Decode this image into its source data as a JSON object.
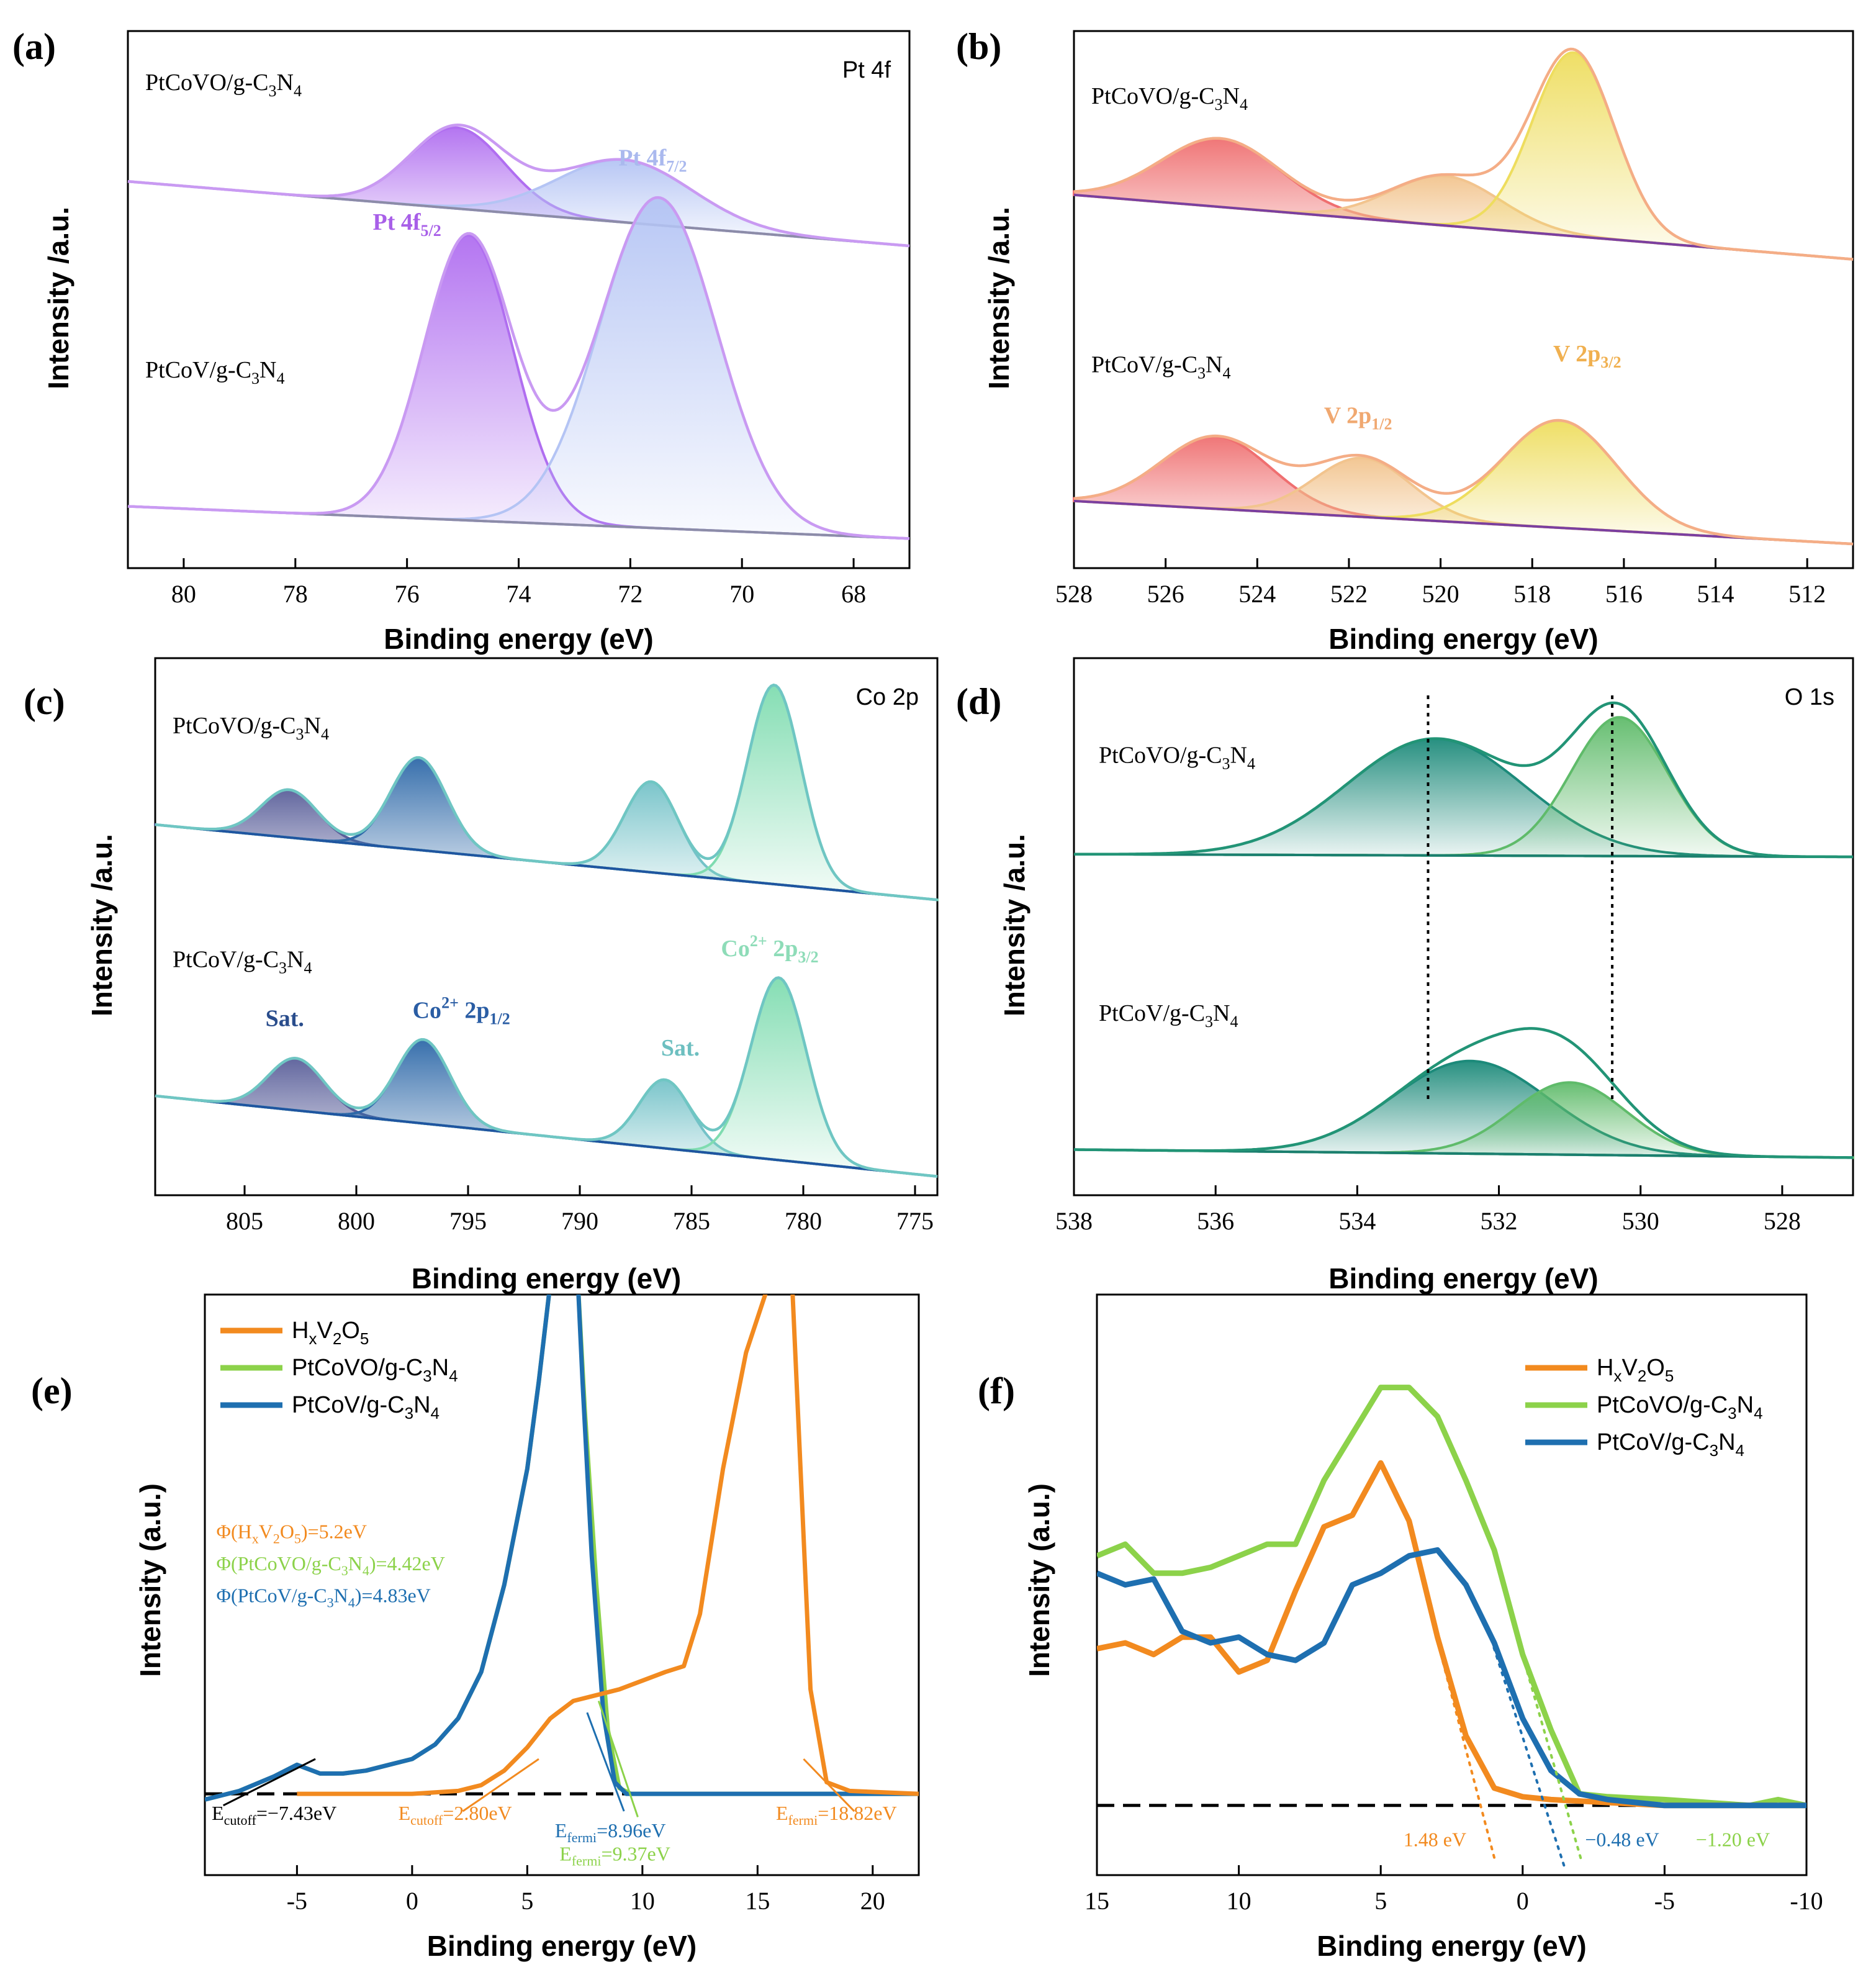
{
  "chart_data": [
    {
      "id": "a",
      "type": "line",
      "panel_label": "(a)",
      "xlabel": "Binding energy (eV)",
      "ylabel": "Intensity /a.u.",
      "xlim": [
        81,
        67
      ],
      "xticks": [
        80,
        78,
        76,
        74,
        72,
        70,
        68
      ],
      "corner_label": "Pt 4f",
      "colors": {
        "p1": "#b06ef0",
        "p2": "#b4c4f4",
        "env": "#c99af2",
        "bg": "#8c8ca8"
      },
      "traces": [
        {
          "name": "PtCoVO/g-C3N4",
          "name_display": "PtCoVO/g-C₃N₄",
          "baseline_start": 0.72,
          "baseline_end": 0.6,
          "peaks": [
            {
              "center": 75.1,
              "height": 0.82,
              "width": 0.85
            },
            {
              "center": 72.1,
              "height": 0.76,
              "width": 1.2
            }
          ]
        },
        {
          "name": "PtCoV/g-C3N4",
          "name_display": "PtCoV/g-C₃N₄",
          "baseline_start": 0.115,
          "baseline_end": 0.055,
          "peaks": [
            {
              "center": 74.9,
              "height": 0.62,
              "width": 0.8
            },
            {
              "center": 71.5,
              "height": 0.69,
              "width": 1.05
            }
          ]
        }
      ],
      "peak_labels": [
        {
          "text": "Pt 4f",
          "sub": "5/2",
          "x": 76.0,
          "y": 0.63,
          "color": "#a85fe8"
        },
        {
          "text": "Pt 4f",
          "sub": "7/2",
          "x": 71.6,
          "y": 0.75,
          "color": "#aab9ee"
        }
      ]
    },
    {
      "id": "b",
      "type": "line",
      "panel_label": "(b)",
      "xlabel": "Binding energy (eV)",
      "ylabel": "Intensity /a.u.",
      "xlim": [
        528,
        511
      ],
      "xticks": [
        528,
        526,
        524,
        522,
        520,
        518,
        516,
        514,
        512
      ],
      "corner_label": "",
      "colors": {
        "p1": "#ef6f70",
        "p2": "#f2c48e",
        "p3": "#eedd5e",
        "env": "#f4ad86",
        "bg": "#7b3fa0"
      },
      "traces": [
        {
          "name": "PtCoVO/g-C3N4",
          "name_display": "PtCoVO/g-C₃N₄",
          "baseline_start": 0.695,
          "baseline_end": 0.575,
          "peaks": [
            {
              "center": 524.8,
              "height": 0.8,
              "width": 1.3
            },
            {
              "center": 519.9,
              "height": 0.73,
              "width": 1.2
            },
            {
              "center": 517.1,
              "height": 0.96,
              "width": 0.9
            }
          ]
        },
        {
          "name": "PtCoV/g-C3N4",
          "name_display": "PtCoV/g-C₃N₄",
          "baseline_start": 0.125,
          "baseline_end": 0.045,
          "peaks": [
            {
              "center": 524.9,
              "height": 0.245,
              "width": 1.2
            },
            {
              "center": 521.7,
              "height": 0.205,
              "width": 1.05
            },
            {
              "center": 517.4,
              "height": 0.275,
              "width": 1.25
            }
          ]
        }
      ],
      "peak_labels": [
        {
          "text": "V 2p",
          "sub": "1/2",
          "x": 521.8,
          "y": 0.27,
          "color": "#f0a870"
        },
        {
          "text": "V 2p",
          "sub": "3/2",
          "x": 516.8,
          "y": 0.385,
          "color": "#f0b050"
        }
      ]
    },
    {
      "id": "c",
      "type": "line",
      "panel_label": "(c)",
      "xlabel": "Binding energy (eV)",
      "ylabel": "Intensity /a.u.",
      "xlim": [
        809,
        774
      ],
      "xticks": [
        805,
        800,
        795,
        790,
        785,
        780,
        775
      ],
      "corner_label": "Co 2p",
      "colors": {
        "p1": "#5a5f9a",
        "p2": "#2d68a8",
        "p3": "#74c2c8",
        "p4": "#7fdcb0",
        "env": "#6fc6c3",
        "bg": "#1f55a0"
      },
      "traces": [
        {
          "name": "PtCoVO/g-C3N4",
          "name_display": "PtCoVO/g-C₃N₄",
          "baseline_start": 0.69,
          "baseline_end": 0.55,
          "peaks": [
            {
              "center": 803.0,
              "height": 0.755,
              "width": 1.25
            },
            {
              "center": 797.2,
              "height": 0.815,
              "width": 1.25
            },
            {
              "center": 786.8,
              "height": 0.77,
              "width": 1.2
            },
            {
              "center": 781.3,
              "height": 0.95,
              "width": 1.2
            }
          ]
        },
        {
          "name": "PtCoV/g-C3N4",
          "name_display": "PtCoV/g-C₃N₄",
          "baseline_start": 0.185,
          "baseline_end": 0.035,
          "peaks": [
            {
              "center": 802.7,
              "height": 0.255,
              "width": 1.25
            },
            {
              "center": 797.0,
              "height": 0.29,
              "width": 1.2
            },
            {
              "center": 786.2,
              "height": 0.215,
              "width": 1.15
            },
            {
              "center": 781.1,
              "height": 0.405,
              "width": 1.25
            }
          ]
        }
      ],
      "peak_labels": [
        {
          "text": "Sat.",
          "sub": "",
          "x": 803.2,
          "y": 0.315,
          "color": "#2a4d8c"
        },
        {
          "text": "Co",
          "sup": "2+",
          "mid": " 2p",
          "sub": "1/2",
          "x": 795.3,
          "y": 0.33,
          "color": "#2a5da4"
        },
        {
          "text": "Sat.",
          "sub": "",
          "x": 785.5,
          "y": 0.26,
          "color": "#6dbfc0"
        },
        {
          "text": "Co",
          "sup": "2+",
          "mid": " 2p",
          "sub": "3/2",
          "x": 781.5,
          "y": 0.445,
          "color": "#8edcb8"
        }
      ]
    },
    {
      "id": "d",
      "type": "line",
      "panel_label": "(d)",
      "xlabel": "Binding energy (eV)",
      "ylabel": "Intensity /a.u.",
      "xlim": [
        538,
        527
      ],
      "xticks": [
        538,
        536,
        534,
        532,
        530,
        528
      ],
      "corner_label": "O 1s",
      "colors": {
        "p1": "#1c8a7a",
        "p2": "#5fbb6a",
        "env": "#229476",
        "bg": "#1b7f6f"
      },
      "dashed_x": [
        533.0,
        530.4
      ],
      "traces": [
        {
          "name": "PtCoVO/g-C3N4",
          "name_display": "PtCoVO/g-C₃N₄",
          "baseline_start": 0.635,
          "baseline_end": 0.63,
          "peaks": [
            {
              "center": 532.9,
              "height": 0.85,
              "width": 1.25
            },
            {
              "center": 530.3,
              "height": 0.89,
              "width": 0.68
            }
          ]
        },
        {
          "name": "PtCoV/g-C3N4",
          "name_display": "PtCoV/g-C₃N₄",
          "baseline_start": 0.085,
          "baseline_end": 0.07,
          "peaks": [
            {
              "center": 532.4,
              "height": 0.25,
              "width": 1.1
            },
            {
              "center": 531.0,
              "height": 0.21,
              "width": 0.8
            }
          ]
        }
      ]
    },
    {
      "id": "e",
      "type": "line",
      "panel_label": "(e)",
      "xlabel": "Binding energy (eV)",
      "ylabel": "Intensity (a.u.)",
      "xlim": [
        -9,
        22
      ],
      "xticks": [
        -5,
        0,
        5,
        10,
        15,
        20
      ],
      "ylim": [
        0,
        1
      ],
      "legend": [
        "HxV2O5",
        "PtCoVO/g-C3N4",
        "PtCoV/g-C3N4"
      ],
      "legend_display": [
        {
          "main": "H",
          "sub1": "x",
          "mid": "V",
          "sub2": "2",
          "end": "O",
          "sub3": "5"
        },
        {
          "main": "PtCoVO/g-C",
          "sub1": "3",
          "mid": "N",
          "sub2": "4"
        },
        {
          "main": "PtCoV/g-C",
          "sub1": "3",
          "mid": "N",
          "sub2": "4"
        }
      ],
      "colors": [
        "#f28a1f",
        "#8cd24a",
        "#1e6fb0"
      ],
      "baseline_y": 0.14,
      "series": [
        {
          "name": "HxV2O5",
          "x": [
            -5,
            0,
            2,
            3,
            4,
            5,
            6,
            7,
            8,
            9,
            10,
            11,
            11.8,
            12.5,
            13.5,
            14.5,
            15.5,
            16.5,
            17.3,
            18,
            19,
            22
          ],
          "y": [
            0.14,
            0.14,
            0.145,
            0.155,
            0.18,
            0.22,
            0.27,
            0.3,
            0.31,
            0.32,
            0.335,
            0.35,
            0.36,
            0.45,
            0.7,
            0.9,
            1.02,
            1.02,
            0.32,
            0.16,
            0.145,
            0.14
          ]
        },
        {
          "name": "PtCoVO/g-C3N4",
          "x": [
            -9,
            -7.5,
            -6,
            -5,
            -4,
            -3,
            -2,
            -1,
            0,
            1,
            2,
            3,
            4,
            5,
            5.5,
            6,
            6.5,
            7,
            7.2,
            7.5,
            8,
            8.5,
            9,
            9.5,
            10,
            22
          ],
          "y": [
            0.13,
            0.145,
            0.17,
            0.19,
            0.175,
            0.175,
            0.18,
            0.19,
            0.2,
            0.225,
            0.27,
            0.35,
            0.5,
            0.7,
            0.85,
            1.02,
            1.02,
            1.02,
            1.02,
            0.8,
            0.5,
            0.25,
            0.15,
            0.14,
            0.14,
            0.14
          ]
        },
        {
          "name": "PtCoV/g-C3N4",
          "x": [
            -9,
            -7.5,
            -6,
            -5,
            -4,
            -3,
            -2,
            -1,
            0,
            1,
            2,
            3,
            4,
            5,
            5.5,
            6,
            6.5,
            7,
            7.2,
            7.4,
            7.8,
            8.3,
            8.8,
            9.3,
            10,
            22
          ],
          "y": [
            0.13,
            0.145,
            0.17,
            0.19,
            0.175,
            0.175,
            0.18,
            0.19,
            0.2,
            0.225,
            0.27,
            0.35,
            0.5,
            0.7,
            0.85,
            1.02,
            1.02,
            1.02,
            1.02,
            0.85,
            0.55,
            0.28,
            0.16,
            0.14,
            0.14,
            0.14
          ]
        }
      ],
      "annotations": [
        {
          "text": "Φ(HxV2O5)=5.2eV",
          "parts": [
            "Φ(H",
            "x",
            "V",
            "2",
            "O",
            "5",
            ")=5.2eV"
          ],
          "color": "#f28a1f",
          "x": -8.5,
          "y": 0.58
        },
        {
          "text": "Φ(PtCoVO/g-C3N4)=4.42eV",
          "parts": [
            "Φ(PtCoVO/g-C",
            "3",
            "N",
            "4",
            ")=4.42eV"
          ],
          "color": "#8cd24a",
          "x": -8.5,
          "y": 0.525
        },
        {
          "text": "Φ(PtCoV/g-C3N4)=4.83eV",
          "parts": [
            "Φ(PtCoV/g-C",
            "3",
            "N",
            "4",
            ")=4.83eV"
          ],
          "color": "#1e6fb0",
          "x": -8.5,
          "y": 0.47
        },
        {
          "text": "Ecutoff=−7.43eV",
          "main": "E",
          "sub": "cutoff",
          "val": "=−7.43eV",
          "color": "#000000",
          "x": -8.7,
          "y": 0.095
        },
        {
          "text": "Ecutoff=2.80eV",
          "main": "E",
          "sub": "cutoff",
          "val": "=2.80eV",
          "color": "#f28a1f",
          "x": -0.6,
          "y": 0.095
        },
        {
          "text": "Efermi=8.96eV",
          "main": "E",
          "sub": "fermi",
          "val": "=8.96eV",
          "color": "#1e6fb0",
          "x": 6.2,
          "y": 0.065
        },
        {
          "text": "Efermi=9.37eV",
          "main": "E",
          "sub": "fermi",
          "val": "=9.37eV",
          "color": "#8cd24a",
          "x": 6.4,
          "y": 0.025
        },
        {
          "text": "Efermi=18.82eV",
          "main": "E",
          "sub": "fermi",
          "val": "=18.82eV",
          "color": "#f28a1f",
          "x": 15.8,
          "y": 0.095
        }
      ]
    },
    {
      "id": "f",
      "type": "line",
      "panel_label": "(f)",
      "xlabel": "Binding energy (eV)",
      "ylabel": "Intensity (a.u.)",
      "xlim": [
        15,
        -10
      ],
      "xticks": [
        15,
        10,
        5,
        0,
        -5,
        -10
      ],
      "ylim": [
        0,
        1
      ],
      "legend": [
        "HxV2O5",
        "PtCoVO/g-C3N4",
        "PtCoV/g-C3N4"
      ],
      "legend_display": [
        {
          "main": "H",
          "sub1": "x",
          "mid": "V",
          "sub2": "2",
          "end": "O",
          "sub3": "5"
        },
        {
          "main": "PtCoVO/g-C",
          "sub1": "3",
          "mid": "N",
          "sub2": "4"
        },
        {
          "main": "PtCoV/g-C",
          "sub1": "3",
          "mid": "N",
          "sub2": "4"
        }
      ],
      "colors": [
        "#f28a1f",
        "#8cd24a",
        "#1e6fb0"
      ],
      "baseline_y": 0.12,
      "series": [
        {
          "name": "HxV2O5",
          "x": [
            15,
            14,
            13,
            12,
            11,
            10,
            9,
            8,
            7,
            6,
            5,
            4,
            3,
            2,
            1,
            0,
            -1,
            -3,
            -5,
            -8,
            -10
          ],
          "y": [
            0.39,
            0.4,
            0.38,
            0.41,
            0.41,
            0.35,
            0.37,
            0.49,
            0.6,
            0.62,
            0.71,
            0.61,
            0.41,
            0.24,
            0.15,
            0.135,
            0.13,
            0.125,
            0.12,
            0.12,
            0.12
          ]
        },
        {
          "name": "PtCoVO/g-C3N4",
          "x": [
            15,
            14,
            13,
            12,
            11,
            10,
            9,
            8,
            7,
            6,
            5,
            4,
            3,
            2,
            1,
            0,
            -1,
            -2,
            -3,
            -5,
            -8,
            -9,
            -10
          ],
          "y": [
            0.55,
            0.57,
            0.52,
            0.52,
            0.53,
            0.55,
            0.57,
            0.57,
            0.68,
            0.76,
            0.84,
            0.84,
            0.79,
            0.68,
            0.56,
            0.38,
            0.25,
            0.14,
            0.135,
            0.13,
            0.12,
            0.13,
            0.12
          ]
        },
        {
          "name": "PtCoV/g-C3N4",
          "x": [
            15,
            14,
            13,
            12,
            11,
            10,
            9,
            8,
            7,
            6,
            5,
            4,
            3,
            2,
            1,
            0,
            -1,
            -2,
            -3,
            -5,
            -10
          ],
          "y": [
            0.52,
            0.5,
            0.51,
            0.42,
            0.4,
            0.41,
            0.38,
            0.37,
            0.4,
            0.5,
            0.52,
            0.55,
            0.56,
            0.5,
            0.4,
            0.27,
            0.18,
            0.14,
            0.13,
            0.12,
            0.12
          ]
        }
      ],
      "extrapolations": [
        {
          "color": "#f28a1f",
          "x1": 3.2,
          "y1": 0.44,
          "x2": 1.0,
          "y2": 0.03
        },
        {
          "color": "#1e6fb0",
          "x1": 1.2,
          "y1": 0.42,
          "x2": -1.5,
          "y2": 0.01
        },
        {
          "color": "#8cd24a",
          "x1": 0.6,
          "y1": 0.48,
          "x2": -2.1,
          "y2": 0.02
        }
      ],
      "annotations": [
        {
          "text": "1.48 eV",
          "color": "#f28a1f",
          "x": 4.2,
          "y": 0.05
        },
        {
          "text": "−0.48 eV",
          "color": "#1e6fb0",
          "x": -2.2,
          "y": 0.05
        },
        {
          "text": "−1.20 eV",
          "color": "#8cd24a",
          "x": -6.1,
          "y": 0.05
        }
      ]
    }
  ]
}
